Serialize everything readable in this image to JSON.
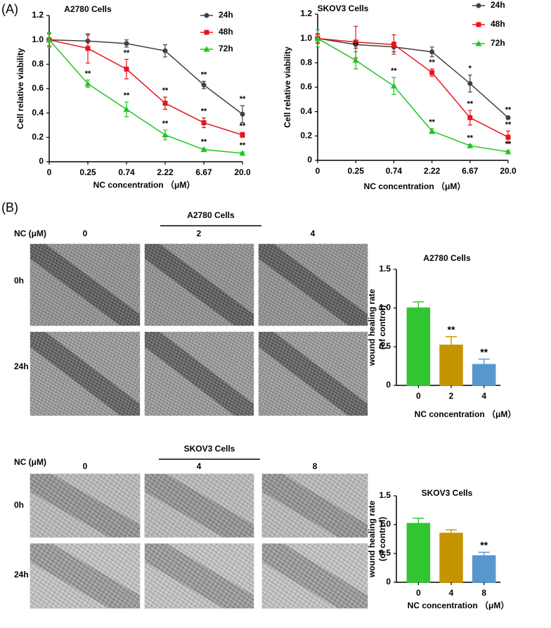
{
  "chart_data": [
    {
      "type": "line",
      "title": "A2780 Cells",
      "xlabel": "NC concentration  （μM）",
      "ylabel": "Cell relative viability",
      "categories": [
        "0",
        "0.25",
        "0.74",
        "2.22",
        "6.67",
        "20.0"
      ],
      "ylim": [
        0,
        1.2
      ],
      "yticks": [
        0,
        0.2,
        0.4,
        0.6,
        0.8,
        {
          "value": 1,
          "label": "1.0"
        },
        1.2
      ],
      "legend": "upper right",
      "series": [
        {
          "name": "24h",
          "color": "#404040",
          "marker": "circle",
          "values": [
            1.0,
            0.99,
            0.97,
            0.91,
            0.63,
            0.39
          ],
          "errors": [
            0.05,
            0.05,
            0.03,
            0.05,
            0.03,
            0.07
          ],
          "annotations": [
            null,
            null,
            null,
            null,
            "**",
            "**"
          ]
        },
        {
          "name": "48h",
          "color": "#e8141b",
          "marker": "square",
          "values": [
            1.0,
            0.93,
            0.76,
            0.48,
            0.32,
            0.22
          ],
          "errors": [
            0.05,
            0.12,
            0.08,
            0.05,
            0.04,
            0.02
          ],
          "annotations": [
            null,
            null,
            "**",
            "**",
            "**",
            "**"
          ]
        },
        {
          "name": "72h",
          "color": "#22c322",
          "marker": "triangle",
          "values": [
            1.0,
            0.64,
            0.43,
            0.22,
            0.1,
            0.07
          ],
          "errors": [
            0.06,
            0.03,
            0.06,
            0.04,
            0.01,
            0.01
          ],
          "annotations": [
            null,
            "**",
            "**",
            "**",
            "**",
            "**"
          ]
        }
      ]
    },
    {
      "type": "line",
      "title": "SKOV3 Cells",
      "xlabel": "NC concentration  （μM）",
      "ylabel": "Cell relative viability",
      "categories": [
        "0",
        "0.25",
        "0.74",
        "2.22",
        "6.67",
        "20.0"
      ],
      "ylim": [
        0,
        1.2
      ],
      "yticks": [
        0,
        0.2,
        0.4,
        0.6,
        0.8,
        {
          "value": 1,
          "label": "1.0"
        },
        1.2
      ],
      "legend": "upper right",
      "series": [
        {
          "name": "24h",
          "color": "#404040",
          "marker": "circle",
          "values": [
            1.0,
            0.95,
            0.93,
            0.89,
            0.63,
            0.35
          ],
          "errors": [
            0.04,
            0.03,
            0.04,
            0.04,
            0.07,
            0.01
          ],
          "annotations": [
            null,
            null,
            null,
            null,
            "*",
            "**"
          ]
        },
        {
          "name": "48h",
          "color": "#e8141b",
          "marker": "square",
          "values": [
            1.0,
            0.97,
            0.95,
            0.72,
            0.35,
            0.19
          ],
          "errors": [
            0.03,
            0.13,
            0.08,
            0.03,
            0.06,
            0.05
          ],
          "annotations": [
            null,
            null,
            null,
            "**",
            "**",
            "**"
          ]
        },
        {
          "name": "72h",
          "color": "#22c322",
          "marker": "triangle",
          "values": [
            1.0,
            0.82,
            0.61,
            0.24,
            0.12,
            0.07
          ],
          "errors": [
            0.07,
            0.07,
            0.07,
            0.02,
            0.01,
            0.01
          ],
          "annotations": [
            null,
            "**",
            "**",
            "**",
            "**",
            "**"
          ]
        }
      ]
    },
    {
      "type": "bar",
      "title": "A2780 Cells",
      "xlabel": "NC concentration  （μM）",
      "ylabel": [
        "wound healing rate",
        "(of control)"
      ],
      "categories": [
        "0",
        "2",
        "4"
      ],
      "values": [
        1.0,
        0.52,
        0.27
      ],
      "errors": [
        0.08,
        0.11,
        0.07
      ],
      "annotations": [
        null,
        "**",
        "**"
      ],
      "colors": [
        "#33cc33",
        "#cc9900",
        "#5b9bd5"
      ],
      "ylim": [
        0,
        1.5
      ],
      "yticks": [
        0,
        0.5,
        {
          "value": 1,
          "label": "1.0"
        },
        1.5
      ]
    },
    {
      "type": "bar",
      "title": "SKOV3 Cells",
      "xlabel": "NC concentration  （μM）",
      "ylabel": [
        "wound healing rate",
        "(of control)"
      ],
      "categories": [
        "0",
        "4",
        "8"
      ],
      "values": [
        1.02,
        0.85,
        0.46
      ],
      "errors": [
        0.09,
        0.06,
        0.06
      ],
      "annotations": [
        null,
        null,
        "**"
      ],
      "colors": [
        "#33cc33",
        "#cc9900",
        "#5b9bd5"
      ],
      "ylim": [
        0,
        1.5
      ],
      "yticks": [
        0,
        0.5,
        {
          "value": 1,
          "label": "1.0"
        },
        1.5
      ]
    }
  ],
  "figure": {
    "panel_a_label": "(A)",
    "panel_b_label": "(B)",
    "wound_sections": [
      {
        "title": "A2780 Cells",
        "nc_label": "NC  (μM)",
        "doses": [
          "0",
          "2",
          "4"
        ],
        "times": [
          "0h",
          "24h"
        ]
      },
      {
        "title": "SKOV3 Cells",
        "nc_label": "NC  (μM)",
        "doses": [
          "0",
          "4",
          "8"
        ],
        "times": [
          "0h",
          "24h"
        ]
      }
    ]
  }
}
